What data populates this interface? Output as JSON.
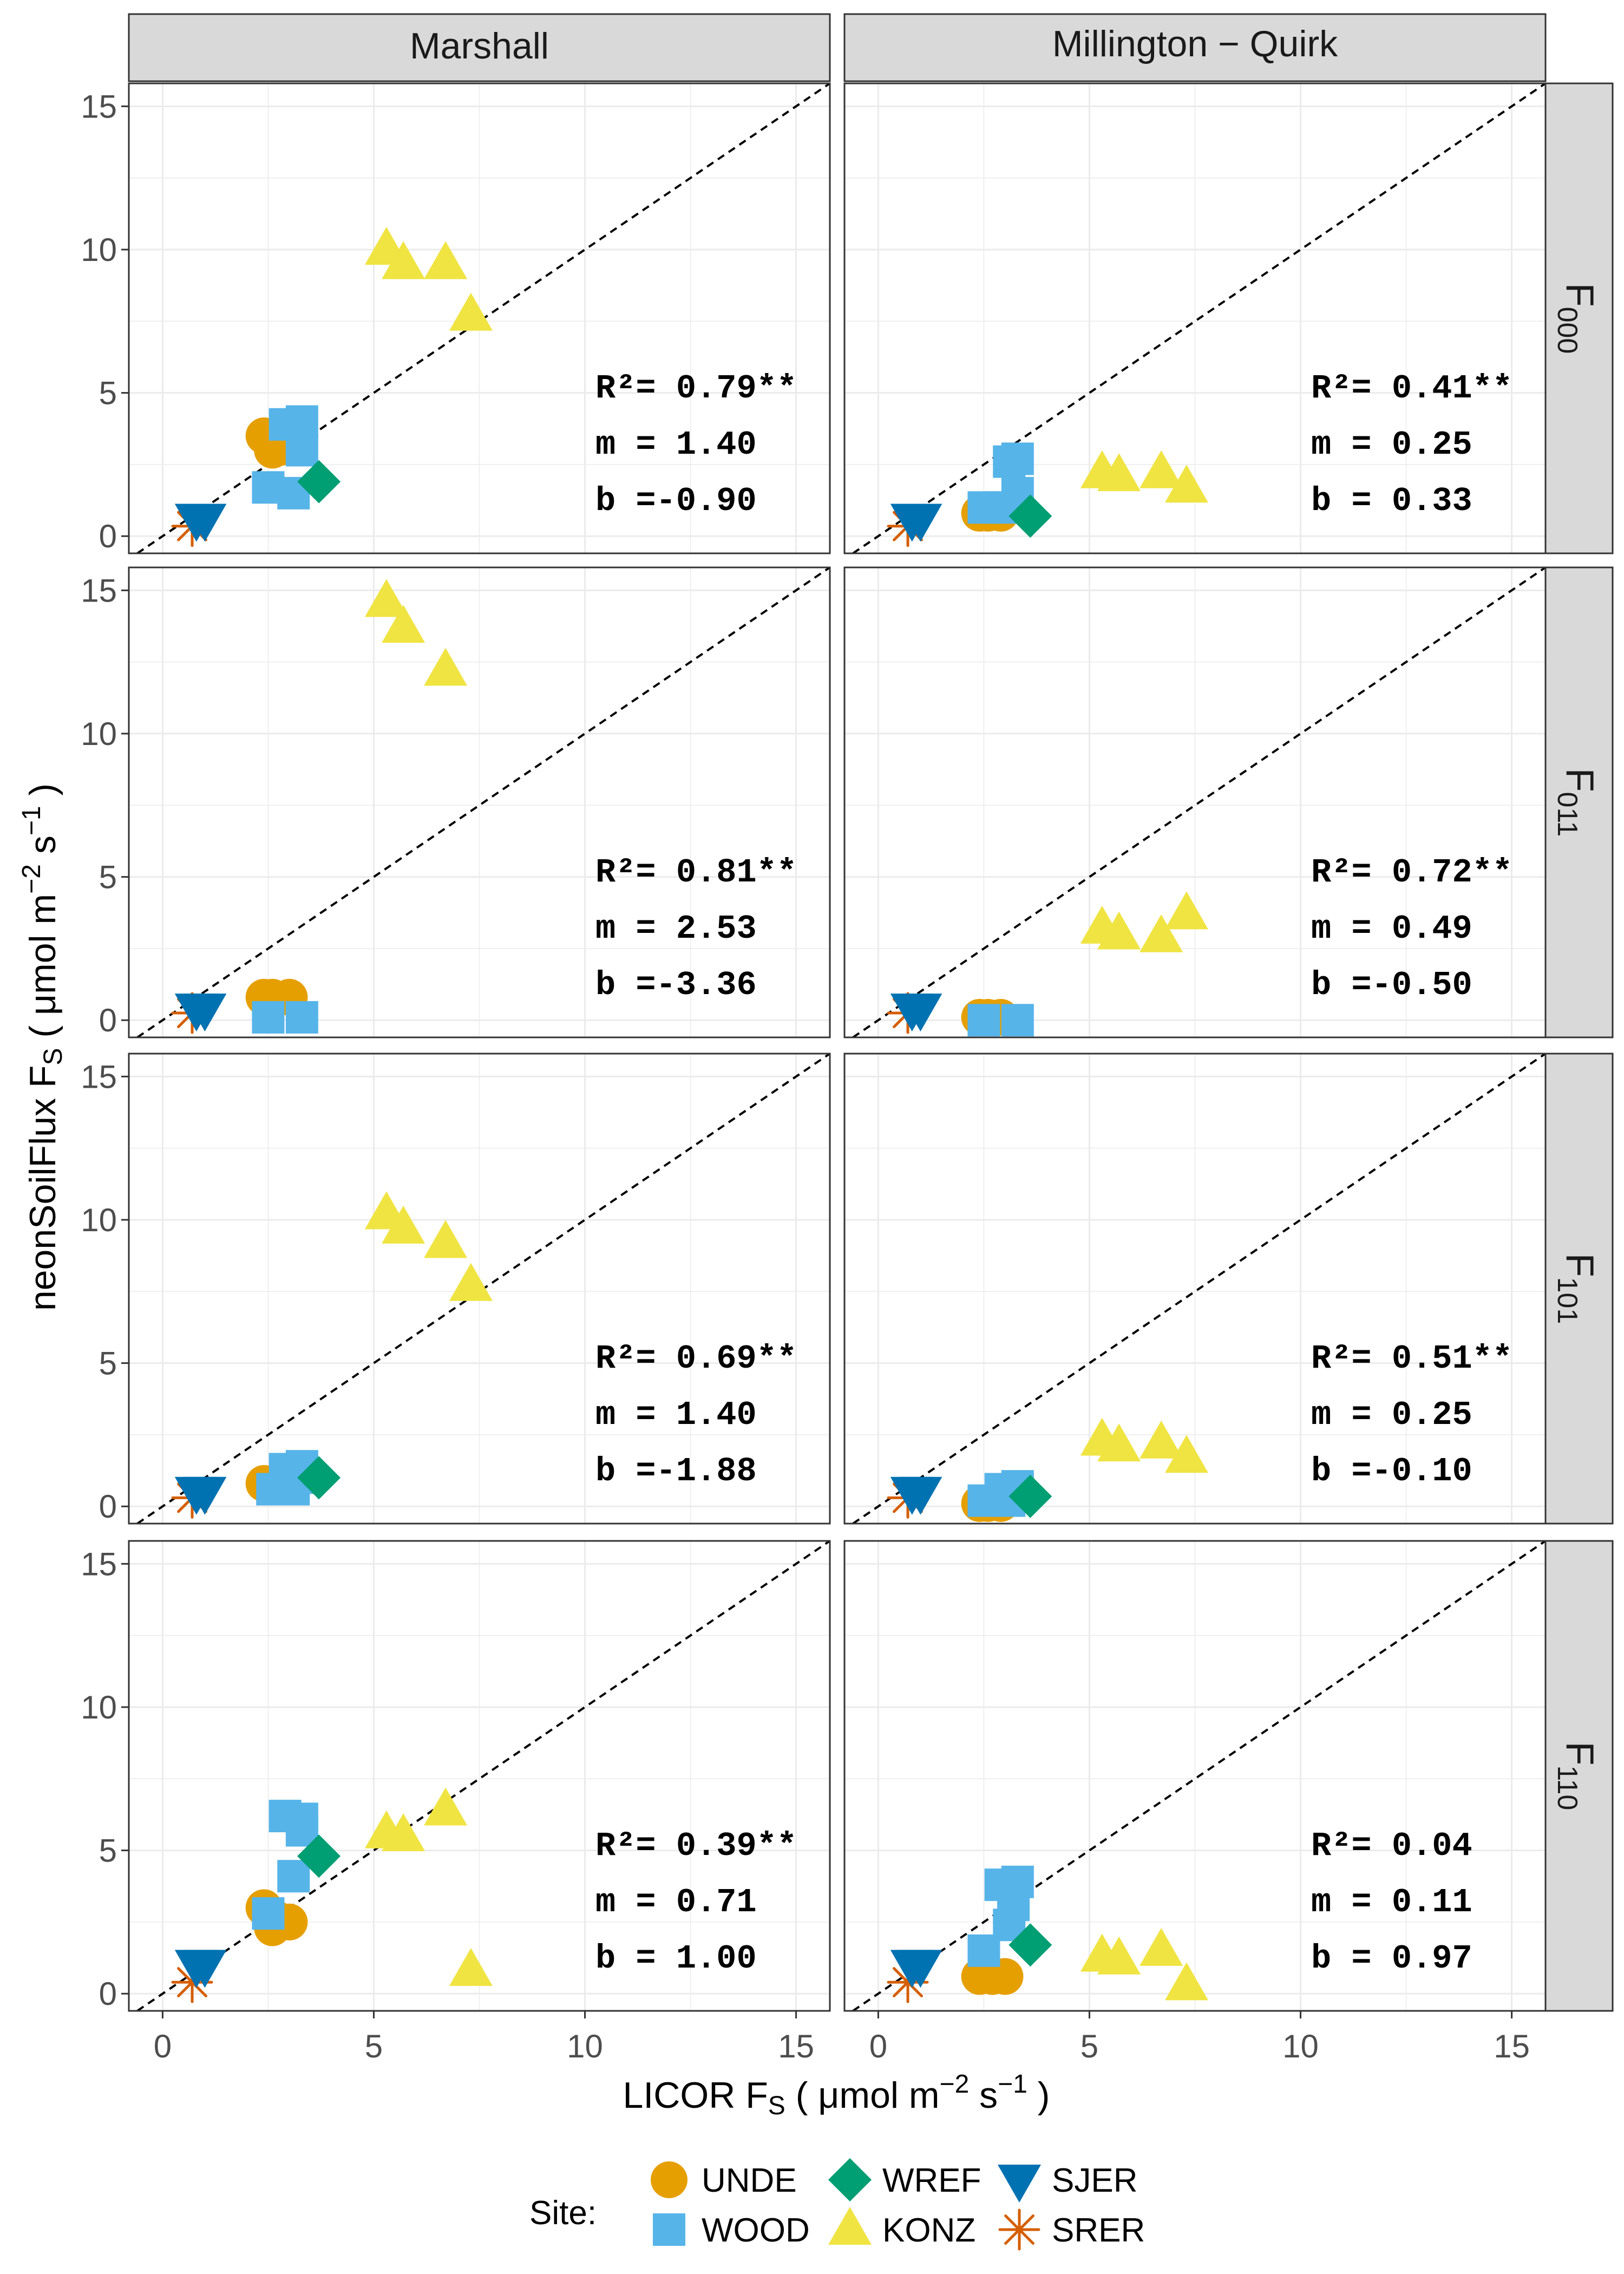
{
  "chart_data": {
    "type": "scatter",
    "x_axis": {
      "label": "LICOR F",
      "sub": "S",
      "unit": " ( μmol m",
      "exp1": "−2",
      "unit2": " s",
      "exp2": "−1",
      "unit3": " )",
      "range": [
        -0.8,
        15.8
      ],
      "ticks": [
        0,
        5,
        10,
        15
      ]
    },
    "y_axis": {
      "label": "neonSoilFlux F",
      "sub": "S",
      "unit": " ( μmol m",
      "exp1": "−2",
      "unit2": " s",
      "exp2": "−1",
      "unit3": " )",
      "range": [
        -0.6,
        15.8
      ],
      "ticks": [
        0,
        5,
        10,
        15
      ]
    },
    "columns": [
      "Marshall",
      "Millington − Quirk"
    ],
    "rows": [
      {
        "main": "F",
        "sub": "000"
      },
      {
        "main": "F",
        "sub": "011"
      },
      {
        "main": "F",
        "sub": "101"
      },
      {
        "main": "F",
        "sub": "110"
      }
    ],
    "reference_line": "1:1 dashed",
    "grid": true,
    "legend": {
      "title": "Site:",
      "position": "bottom",
      "entries": [
        {
          "site": "UNDE",
          "color": "#E69F00",
          "shape": "circle"
        },
        {
          "site": "WOOD",
          "color": "#56B4E9",
          "shape": "square"
        },
        {
          "site": "WREF",
          "color": "#009E73",
          "shape": "diamond"
        },
        {
          "site": "KONZ",
          "color": "#F0E442",
          "shape": "triangle-up"
        },
        {
          "site": "SJER",
          "color": "#0072B2",
          "shape": "triangle-down"
        },
        {
          "site": "SRER",
          "color": "#D55E00",
          "shape": "asterisk"
        }
      ]
    },
    "panels": [
      {
        "row": 0,
        "col": 0,
        "stats": [
          "R²= 0.79**",
          "m = 1.40",
          "b =-0.90"
        ],
        "points": {
          "UNDE": [
            [
              2.4,
              3.5
            ],
            [
              2.6,
              3.0
            ],
            [
              2.8,
              3.1
            ]
          ],
          "WOOD": [
            [
              2.5,
              1.7
            ],
            [
              2.9,
              3.9
            ],
            [
              3.1,
              1.5
            ],
            [
              3.3,
              4.0
            ],
            [
              3.3,
              3.0
            ]
          ],
          "WREF": [
            [
              3.7,
              1.9
            ]
          ],
          "KONZ": [
            [
              5.3,
              10.0
            ],
            [
              5.7,
              9.5
            ],
            [
              6.7,
              9.5
            ],
            [
              7.3,
              7.7
            ]
          ],
          "SJER": [
            [
              0.8,
              0.6
            ],
            [
              1.0,
              0.6
            ]
          ],
          "SRER": [
            [
              0.7,
              0.35
            ]
          ]
        }
      },
      {
        "row": 0,
        "col": 1,
        "stats": [
          "R²= 0.41**",
          "m = 0.25",
          "b = 0.33"
        ],
        "points": {
          "UNDE": [
            [
              2.4,
              0.8
            ],
            [
              2.6,
              0.8
            ],
            [
              2.9,
              0.8
            ]
          ],
          "WOOD": [
            [
              2.5,
              1.0
            ],
            [
              2.9,
              1.0
            ],
            [
              3.1,
              2.6
            ],
            [
              3.3,
              2.7
            ],
            [
              3.3,
              1.5
            ]
          ],
          "WREF": [
            [
              3.6,
              0.7
            ]
          ],
          "KONZ": [
            [
              5.3,
              2.2
            ],
            [
              5.7,
              2.1
            ],
            [
              6.7,
              2.2
            ],
            [
              7.3,
              1.7
            ]
          ],
          "SJER": [
            [
              0.8,
              0.6
            ],
            [
              1.0,
              0.6
            ]
          ],
          "SRER": [
            [
              0.7,
              0.35
            ]
          ]
        }
      },
      {
        "row": 1,
        "col": 0,
        "stats": [
          "R²= 0.81**",
          "m = 2.53",
          "b =-3.36"
        ],
        "points": {
          "UNDE": [
            [
              2.4,
              0.8
            ],
            [
              2.6,
              0.8
            ],
            [
              3.0,
              0.8
            ]
          ],
          "WOOD": [
            [
              2.5,
              0.1
            ],
            [
              3.3,
              0.1
            ]
          ],
          "WREF": [],
          "KONZ": [
            [
              5.3,
              14.6
            ],
            [
              5.7,
              13.7
            ],
            [
              6.7,
              12.2
            ]
          ],
          "SJER": [
            [
              0.8,
              0.4
            ],
            [
              1.0,
              0.4
            ]
          ],
          "SRER": [
            [
              0.7,
              0.25
            ]
          ]
        }
      },
      {
        "row": 1,
        "col": 1,
        "stats": [
          "R²= 0.72**",
          "m = 0.49",
          "b =-0.50"
        ],
        "points": {
          "UNDE": [
            [
              2.4,
              0.1
            ],
            [
              2.6,
              0.1
            ],
            [
              2.9,
              0.1
            ]
          ],
          "WOOD": [
            [
              2.5,
              0.0
            ],
            [
              3.3,
              0.0
            ]
          ],
          "WREF": [],
          "KONZ": [
            [
              5.3,
              3.2
            ],
            [
              5.7,
              3.0
            ],
            [
              6.7,
              2.9
            ],
            [
              7.3,
              3.7
            ]
          ],
          "SJER": [
            [
              0.8,
              0.4
            ],
            [
              1.0,
              0.4
            ]
          ],
          "SRER": [
            [
              0.7,
              0.25
            ]
          ]
        }
      },
      {
        "row": 2,
        "col": 0,
        "stats": [
          "R²= 0.69**",
          "m = 1.40",
          "b =-1.88"
        ],
        "points": {
          "UNDE": [
            [
              2.4,
              0.8
            ],
            [
              2.7,
              0.7
            ]
          ],
          "WOOD": [
            [
              2.6,
              0.6
            ],
            [
              2.9,
              1.3
            ],
            [
              3.1,
              0.6
            ],
            [
              3.3,
              1.4
            ],
            [
              3.2,
              1.0
            ]
          ],
          "WREF": [
            [
              3.7,
              1.0
            ]
          ],
          "KONZ": [
            [
              5.3,
              10.2
            ],
            [
              5.7,
              9.7
            ],
            [
              6.7,
              9.2
            ],
            [
              7.3,
              7.7
            ]
          ],
          "SJER": [
            [
              0.8,
              0.5
            ],
            [
              1.0,
              0.5
            ]
          ],
          "SRER": [
            [
              0.7,
              0.3
            ]
          ]
        }
      },
      {
        "row": 2,
        "col": 1,
        "stats": [
          "R²= 0.51**",
          "m = 0.25",
          "b =-0.10"
        ],
        "points": {
          "UNDE": [
            [
              2.4,
              0.1
            ],
            [
              2.6,
              0.1
            ],
            [
              2.9,
              0.1
            ]
          ],
          "WOOD": [
            [
              2.5,
              0.2
            ],
            [
              2.9,
              0.6
            ],
            [
              3.1,
              0.2
            ],
            [
              3.3,
              0.7
            ],
            [
              3.2,
              0.5
            ]
          ],
          "WREF": [
            [
              3.6,
              0.35
            ]
          ],
          "KONZ": [
            [
              5.3,
              2.3
            ],
            [
              5.7,
              2.1
            ],
            [
              6.7,
              2.2
            ],
            [
              7.3,
              1.7
            ]
          ],
          "SJER": [
            [
              0.8,
              0.5
            ],
            [
              1.0,
              0.5
            ]
          ],
          "SRER": [
            [
              0.7,
              0.3
            ]
          ]
        }
      },
      {
        "row": 3,
        "col": 0,
        "stats": [
          "R²= 0.39**",
          "m = 0.71",
          "b = 1.00"
        ],
        "points": {
          "UNDE": [
            [
              2.4,
              3.0
            ],
            [
              2.6,
              2.3
            ],
            [
              3.0,
              2.5
            ],
            [
              2.7,
              2.6
            ]
          ],
          "WOOD": [
            [
              2.5,
              2.8
            ],
            [
              2.9,
              6.2
            ],
            [
              3.1,
              4.1
            ],
            [
              3.3,
              6.1
            ],
            [
              3.3,
              5.7
            ]
          ],
          "WREF": [
            [
              3.7,
              4.8
            ]
          ],
          "KONZ": [
            [
              5.3,
              5.6
            ],
            [
              5.7,
              5.5
            ],
            [
              6.7,
              6.4
            ],
            [
              7.3,
              0.8
            ]
          ],
          "SJER": [
            [
              0.8,
              1.0
            ],
            [
              1.0,
              1.0
            ]
          ],
          "SRER": [
            [
              0.7,
              0.4
            ]
          ]
        }
      },
      {
        "row": 3,
        "col": 1,
        "stats": [
          "R²= 0.04",
          "m = 0.11",
          "b = 0.97"
        ],
        "points": {
          "UNDE": [
            [
              2.4,
              0.6
            ],
            [
              2.7,
              0.6
            ],
            [
              3.0,
              0.6
            ]
          ],
          "WOOD": [
            [
              2.5,
              1.5
            ],
            [
              2.9,
              3.8
            ],
            [
              3.1,
              2.4
            ],
            [
              3.3,
              3.9
            ],
            [
              3.2,
              3.1
            ]
          ],
          "WREF": [
            [
              3.6,
              1.7
            ]
          ],
          "KONZ": [
            [
              5.3,
              1.3
            ],
            [
              5.7,
              1.2
            ],
            [
              6.7,
              1.5
            ],
            [
              7.3,
              0.3
            ]
          ],
          "SJER": [
            [
              0.8,
              1.0
            ],
            [
              1.0,
              1.0
            ]
          ],
          "SRER": [
            [
              0.7,
              0.4
            ]
          ]
        }
      }
    ]
  }
}
